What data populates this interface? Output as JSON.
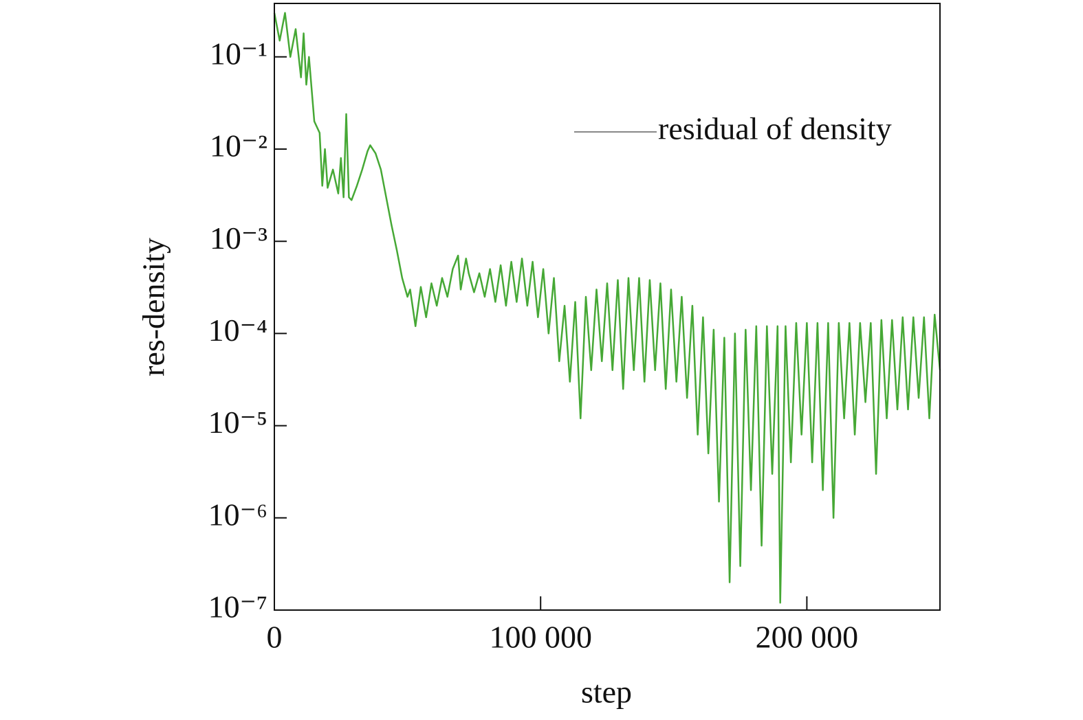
{
  "chart_data": {
    "type": "line",
    "xlabel": "step",
    "ylabel": "res-density",
    "yscale": "log",
    "legend": "upper right",
    "xlim": [
      0,
      250000
    ],
    "ylim": [
      1e-07,
      0.38
    ],
    "xticks": [
      0,
      {
        "value": 100000,
        "label": "100 000"
      },
      {
        "value": 200000,
        "label": "200 000"
      }
    ],
    "yticks": [
      {
        "value": 1e-07,
        "label": "10⁻⁷"
      },
      {
        "value": 1e-06,
        "label": "10⁻⁶"
      },
      {
        "value": 1e-05,
        "label": "10⁻⁵"
      },
      {
        "value": 0.0001,
        "label": "10⁻⁴"
      },
      {
        "value": 0.001,
        "label": "10⁻³"
      },
      {
        "value": 0.01,
        "label": "10⁻²"
      },
      {
        "value": 0.1,
        "label": "10⁻¹"
      }
    ],
    "x": [
      0,
      2000,
      4000,
      6000,
      8000,
      10000,
      11000,
      12000,
      13000,
      15000,
      17000,
      18000,
      19000,
      20000,
      22000,
      24000,
      25000,
      26000,
      27000,
      28000,
      29000,
      31000,
      33000,
      35000,
      36000,
      38000,
      40000,
      42000,
      44000,
      46000,
      48000,
      50000,
      51000,
      53000,
      55000,
      57000,
      59000,
      61000,
      63000,
      65000,
      67000,
      69000,
      70000,
      72000,
      73000,
      75000,
      77000,
      79000,
      81000,
      83000,
      85000,
      87000,
      89000,
      91000,
      93000,
      95000,
      97000,
      99000,
      101000,
      103000,
      105000,
      107000,
      109000,
      111000,
      113000,
      115000,
      117000,
      119000,
      121000,
      123000,
      125000,
      127000,
      129000,
      131000,
      133000,
      135000,
      137000,
      139000,
      141000,
      143000,
      145000,
      147000,
      149000,
      151000,
      153000,
      155000,
      157000,
      159000,
      161000,
      163000,
      165000,
      167000,
      169000,
      171000,
      173000,
      175000,
      177000,
      179000,
      181000,
      183000,
      185000,
      187000,
      189000,
      190000,
      192000,
      194000,
      196000,
      198000,
      200000,
      202000,
      204000,
      206000,
      208000,
      210000,
      212000,
      214000,
      216000,
      218000,
      220000,
      222000,
      224000,
      226000,
      228000,
      230000,
      232000,
      234000,
      236000,
      238000,
      240000,
      242000,
      244000,
      246000,
      248000,
      250000
    ],
    "series": [
      {
        "name": "residual of density",
        "color": "#46a835",
        "values": [
          0.3,
          0.15,
          0.3,
          0.1,
          0.2,
          0.06,
          0.18,
          0.05,
          0.1,
          0.02,
          0.015,
          0.004,
          0.01,
          0.0038,
          0.006,
          0.0033,
          0.008,
          0.003,
          0.024,
          0.003,
          0.0028,
          0.004,
          0.006,
          0.0095,
          0.011,
          0.009,
          0.006,
          0.003,
          0.0015,
          0.0008,
          0.0004,
          0.00025,
          0.0003,
          0.00012,
          0.00032,
          0.00015,
          0.00035,
          0.0002,
          0.0004,
          0.00025,
          0.0005,
          0.0007,
          0.0003,
          0.00065,
          0.00045,
          0.00028,
          0.00045,
          0.00025,
          0.0005,
          0.00022,
          0.00055,
          0.0002,
          0.0006,
          0.00022,
          0.00065,
          0.0002,
          0.0006,
          0.00015,
          0.0005,
          0.0001,
          0.0004,
          5e-05,
          0.0002,
          3e-05,
          0.00022,
          1.2e-05,
          0.00025,
          4e-05,
          0.0003,
          5e-05,
          0.00035,
          4e-05,
          0.00038,
          2.5e-05,
          0.0004,
          4e-05,
          0.0004,
          3e-05,
          0.00038,
          4e-05,
          0.00035,
          2.5e-05,
          0.0003,
          3e-05,
          0.00025,
          2e-05,
          0.0002,
          8e-06,
          0.00015,
          5e-06,
          0.00011,
          1.5e-06,
          9e-05,
          2e-07,
          0.0001,
          3e-07,
          0.00011,
          2e-06,
          0.00012,
          5e-07,
          0.00012,
          3e-06,
          0.00012,
          1.2e-07,
          0.00012,
          4e-06,
          0.00013,
          8e-06,
          0.00013,
          4e-06,
          0.00013,
          2e-06,
          0.00013,
          1e-06,
          0.00013,
          1.2e-05,
          0.00013,
          8e-06,
          0.00013,
          1.8e-05,
          0.00013,
          3e-06,
          0.00014,
          1.2e-05,
          0.00014,
          1.5e-05,
          0.00015,
          1.5e-05,
          0.00015,
          2e-05,
          0.00015,
          1.2e-05,
          0.00016,
          4e-05
        ]
      }
    ]
  }
}
